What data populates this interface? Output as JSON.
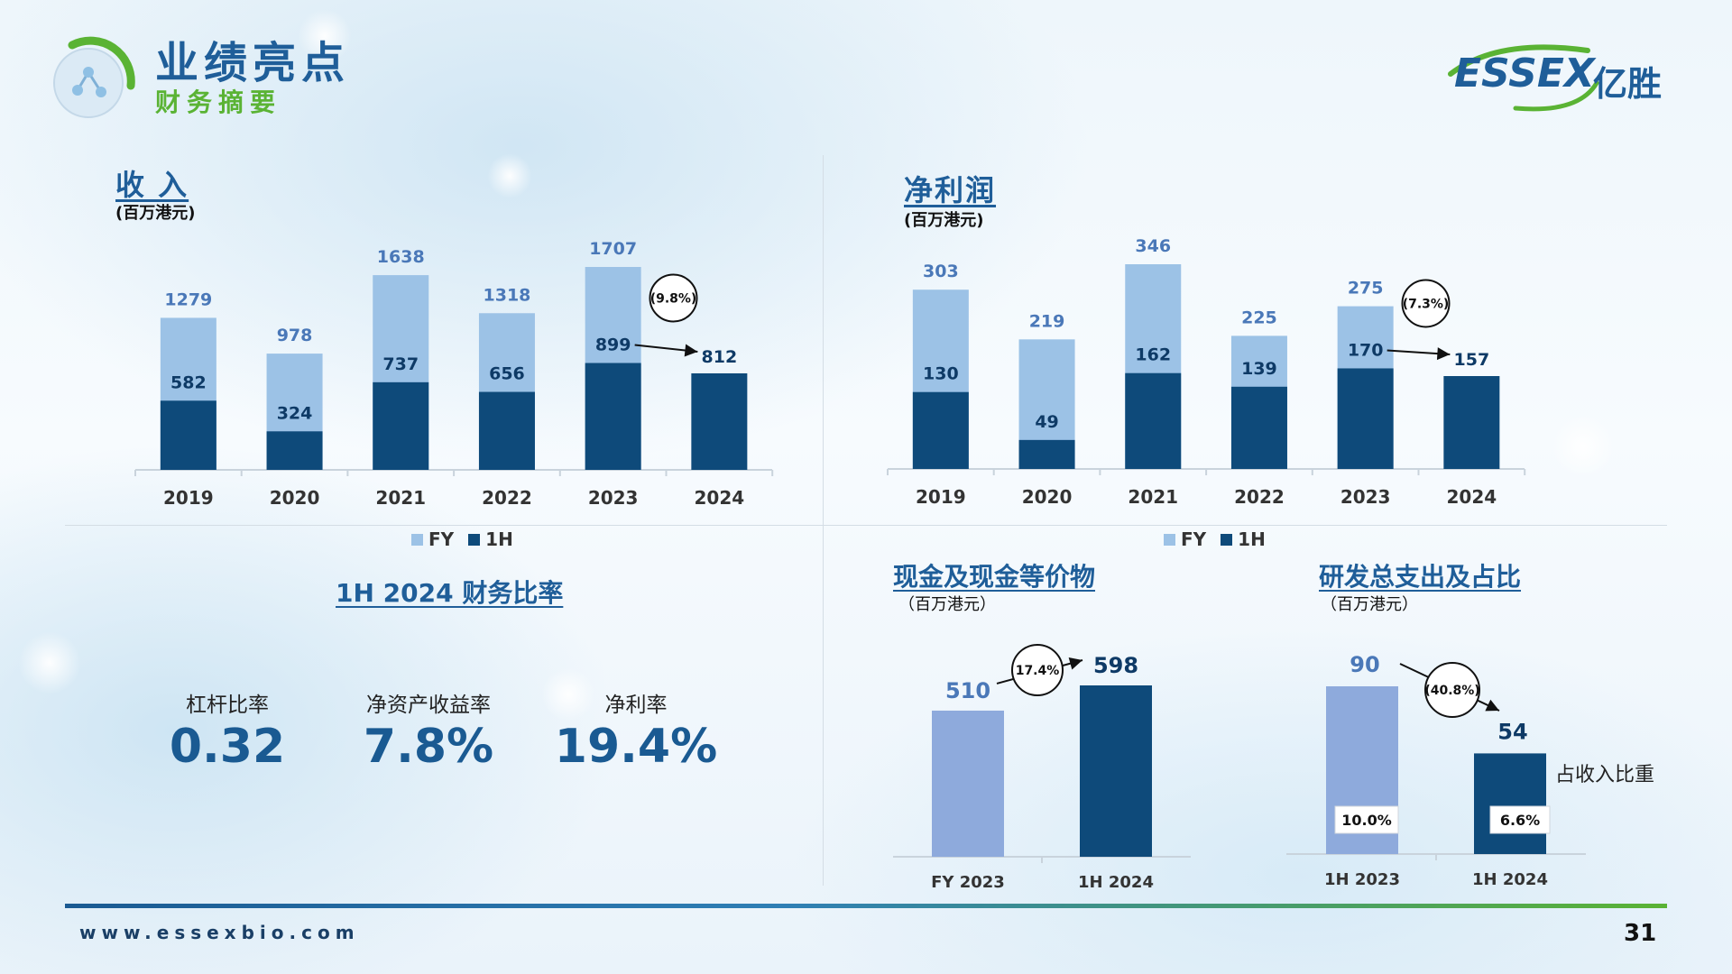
{
  "header": {
    "title": "业绩亮点",
    "subtitle": "财务摘要",
    "logo_text": "ESSEX",
    "logo_cn": "亿胜"
  },
  "colors": {
    "fy": "#9cc2e6",
    "h1": "#0e4a7a",
    "fy2023": "#8eaadc",
    "title": "#1f5e99",
    "green": "#5ab334",
    "value_fy": "#4a78b8"
  },
  "revenue": {
    "title": "收 入",
    "unit": "(百万港元)",
    "change_label": "(9.8%)",
    "legend_fy": "FY",
    "legend_1h": "1H"
  },
  "net_profit": {
    "title": "净利润",
    "unit": "(百万港元)",
    "change_label": "(7.3%)",
    "legend_fy": "FY",
    "legend_1h": "1H"
  },
  "ratios": {
    "title": "1H 2024 财务比率",
    "items": [
      {
        "label": "杠杆比率",
        "value": "0.32"
      },
      {
        "label": "净资产收益率",
        "value": "7.8%"
      },
      {
        "label": "净利率",
        "value": "19.4%"
      }
    ]
  },
  "cash": {
    "title": "现金及现金等价物",
    "unit": "（百万港元）",
    "change_label": "17.4%"
  },
  "rnd": {
    "title": "研发总支出及占比",
    "unit": "（百万港元）",
    "change_label": "(40.8%)",
    "ratio_caption": "占收入比重"
  },
  "footer": {
    "url": "www.essexbio.com",
    "page": "31"
  },
  "chart_data": [
    {
      "id": "revenue",
      "type": "bar",
      "categories": [
        "2019",
        "2020",
        "2021",
        "2022",
        "2023",
        "2024"
      ],
      "series": [
        {
          "name": "FY",
          "values": [
            1279,
            978,
            1638,
            1318,
            1707,
            null
          ]
        },
        {
          "name": "1H",
          "values": [
            582,
            324,
            737,
            656,
            899,
            812
          ]
        }
      ],
      "ylim": [
        0,
        1707
      ]
    },
    {
      "id": "net_profit",
      "type": "bar",
      "categories": [
        "2019",
        "2020",
        "2021",
        "2022",
        "2023",
        "2024"
      ],
      "series": [
        {
          "name": "FY",
          "values": [
            303,
            219,
            346,
            225,
            275,
            null
          ]
        },
        {
          "name": "1H",
          "values": [
            130,
            49,
            162,
            139,
            170,
            157
          ]
        }
      ],
      "ylim": [
        0,
        346
      ]
    },
    {
      "id": "cash",
      "type": "bar",
      "categories": [
        "FY 2023",
        "1H 2024"
      ],
      "values": [
        510,
        598
      ],
      "ylim": [
        0,
        598
      ]
    },
    {
      "id": "rnd",
      "type": "bar",
      "categories": [
        "1H 2023",
        "1H 2024"
      ],
      "values": [
        90,
        54
      ],
      "ratios": [
        "10.0%",
        "6.6%"
      ],
      "ylim": [
        0,
        90
      ]
    }
  ]
}
